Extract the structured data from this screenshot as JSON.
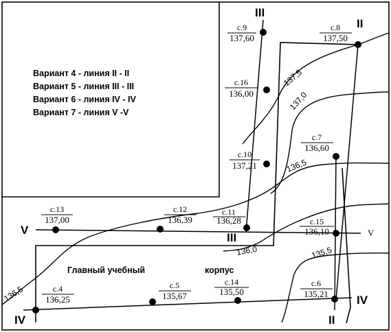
{
  "legend": [
    "Вариант 4 - линия II - II",
    "Вариант 5 - линия III - III",
    "Вариант 6 - линия IV - IV",
    "Вариант 7 - линия V -V"
  ],
  "stations": [
    {
      "id": "9",
      "name": "с.9",
      "elevation": "137,60"
    },
    {
      "id": "8",
      "name": "с.8",
      "elevation": "137,50"
    },
    {
      "id": "16",
      "name": "с.16",
      "elevation": "136,00"
    },
    {
      "id": "7",
      "name": "с.7",
      "elevation": "136,60"
    },
    {
      "id": "10",
      "name": "с.10",
      "elevation": "137,21"
    },
    {
      "id": "13",
      "name": "с.13",
      "elevation": "137,00"
    },
    {
      "id": "12",
      "name": "с.12",
      "elevation": "136,39"
    },
    {
      "id": "11",
      "name": "с.11",
      "elevation": "136,28"
    },
    {
      "id": "15",
      "name": "с.15",
      "elevation": "136,10"
    },
    {
      "id": "4",
      "name": "с.4",
      "elevation": "136,25"
    },
    {
      "id": "5",
      "name": "с.5",
      "elevation": "135,67"
    },
    {
      "id": "14",
      "name": "с.14",
      "elevation": "135,50"
    },
    {
      "id": "6",
      "name": "с.6",
      "elevation": "135,21"
    }
  ],
  "line_labels": {
    "III_top": "III",
    "III_bottom": "III",
    "II_top": "II",
    "II_bottom": "II",
    "IV_left": "IV",
    "IV_right": "IV",
    "V_left": "V",
    "V_right": "V"
  },
  "contours": [
    {
      "id": "1375",
      "value": "137,5"
    },
    {
      "id": "1370",
      "value": "137,0"
    },
    {
      "id": "1365",
      "value": "136,5"
    },
    {
      "id": "1360",
      "value": "136,0"
    },
    {
      "id": "1355",
      "value": "135,5"
    },
    {
      "id": "1365b",
      "value": "136,5"
    }
  ],
  "building": {
    "line1": "Главный учебный",
    "line2": "корпус"
  }
}
